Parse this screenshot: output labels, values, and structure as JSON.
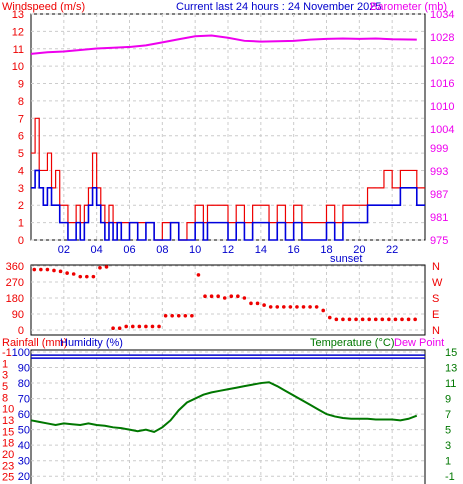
{
  "header": {
    "left_title": "Windspeed (m/s)",
    "center_title": "Current last 24 hours : 24 November 2025",
    "right_title": "Barometer (mb)",
    "sunset_label": "sunset"
  },
  "colors": {
    "wind_avg": "#0000dd",
    "wind_gust": "#ee0000",
    "barometer": "#ee00ee",
    "direction": "#ee0000",
    "temperature": "#007700",
    "humidity": "#0000cc",
    "rainfall": "#ee0000",
    "dewpoint": "#ee00ee",
    "grid": "#cccccc"
  },
  "chart_data": [
    {
      "type": "line",
      "title": "Current last 24 hours : 24 November 2025",
      "left_axis": {
        "label": "Windspeed (m/s)",
        "ticks": [
          0,
          1,
          2,
          3,
          4,
          5,
          6,
          7,
          8,
          9,
          10,
          11,
          12,
          13
        ],
        "ylim": [
          0,
          13
        ]
      },
      "right_axis": {
        "label": "Barometer (mb)",
        "ticks": [
          975,
          981,
          987,
          993,
          999,
          1004,
          1010,
          1016,
          1022,
          1028,
          1034
        ],
        "ylim": [
          975,
          1034
        ]
      },
      "x_ticks": [
        "02",
        "04",
        "06",
        "08",
        "10",
        "12",
        "14",
        "16",
        "18",
        "20",
        "22"
      ],
      "xlim": [
        0,
        24
      ],
      "series": [
        {
          "name": "Barometer",
          "axis": "right",
          "x": [
            0,
            1,
            2,
            3,
            4,
            5,
            6,
            7,
            8,
            9,
            10,
            11,
            12,
            13,
            14,
            15,
            16,
            17,
            18,
            19,
            20,
            21,
            22,
            23.5
          ],
          "values": [
            1023.6,
            1024.0,
            1024.2,
            1024.6,
            1025.0,
            1025.2,
            1025.4,
            1025.8,
            1026.6,
            1027.4,
            1028.2,
            1028.4,
            1027.8,
            1027.0,
            1026.8,
            1026.9,
            1027.0,
            1027.3,
            1027.5,
            1027.6,
            1027.5,
            1027.6,
            1027.4,
            1027.3
          ]
        },
        {
          "axis": "left",
          "x": [
            0,
            0.25,
            0.5,
            0.75,
            1,
            1.25,
            1.5,
            1.75,
            2,
            2.25,
            2.5,
            2.75,
            3,
            3.25,
            3.5,
            3.75,
            4,
            4.25,
            4.5,
            4.75,
            5,
            5.25,
            5.5,
            5.75,
            6,
            6.5,
            7,
            7.5,
            8,
            8.5,
            9,
            9.5,
            10,
            10.25,
            10.5,
            10.75,
            11,
            11.5,
            12,
            12.5,
            13,
            13.5,
            14,
            14.5,
            15,
            15.5,
            16,
            16.5,
            17,
            17.5,
            18,
            18.5,
            19,
            19.5,
            20,
            20.5,
            21,
            21.5,
            22,
            22.5,
            23,
            23.5
          ],
          "values": [
            5,
            7,
            4,
            4,
            5,
            3,
            4,
            2,
            2,
            1,
            1,
            2,
            1,
            2,
            3,
            5,
            3,
            2,
            1,
            2,
            1,
            1,
            1,
            1,
            1,
            1,
            1,
            0,
            1,
            1,
            0,
            1,
            2,
            2,
            1,
            2,
            2,
            2,
            1,
            2,
            1,
            2,
            2,
            1,
            2,
            1,
            2,
            1,
            1,
            1,
            2,
            1,
            2,
            2,
            2,
            3,
            3,
            4,
            3,
            4,
            4,
            3
          ]
        },
        {
          "axis": "left",
          "x": [
            0,
            0.25,
            0.5,
            0.75,
            1,
            1.25,
            1.5,
            1.75,
            2,
            2.25,
            2.5,
            2.75,
            3,
            3.25,
            3.5,
            3.75,
            4,
            4.25,
            4.5,
            4.75,
            5,
            5.25,
            5.5,
            5.75,
            6,
            6.5,
            7,
            7.5,
            8,
            8.5,
            9,
            9.5,
            10,
            10.25,
            10.5,
            10.75,
            11,
            11.5,
            12,
            12.5,
            13,
            13.5,
            14,
            14.5,
            15,
            15.5,
            16,
            16.5,
            17,
            17.5,
            18,
            18.5,
            19,
            19.5,
            20,
            20.5,
            21,
            21.5,
            22,
            22.5,
            23,
            23.5
          ],
          "values": [
            3,
            4,
            3,
            2,
            3,
            2,
            2,
            1,
            1,
            0,
            0,
            1,
            0,
            1,
            2,
            3,
            2,
            1,
            0,
            1,
            0,
            1,
            0,
            0,
            1,
            0,
            1,
            0,
            0,
            1,
            0,
            0,
            1,
            1,
            0,
            1,
            1,
            1,
            0,
            1,
            0,
            1,
            1,
            0,
            1,
            0,
            1,
            0,
            0,
            0,
            1,
            0,
            1,
            1,
            1,
            2,
            2,
            2,
            2,
            3,
            3,
            2
          ]
        }
      ]
    },
    {
      "type": "scatter",
      "title": "",
      "left_axis": {
        "ticks": [
          0,
          90,
          180,
          270,
          360
        ],
        "ylim": [
          0,
          360
        ]
      },
      "right_axis": {
        "ticks": [
          "N",
          "E",
          "S",
          "W",
          "N"
        ]
      },
      "xlim": [
        0,
        24
      ],
      "series": [
        {
          "x": [
            0.2,
            0.6,
            1.0,
            1.4,
            1.8,
            2.2,
            2.6,
            3.0,
            3.4,
            3.8,
            4.2,
            4.6,
            5.0,
            5.4,
            5.8,
            6.2,
            6.6,
            7.0,
            7.4,
            7.8,
            8.2,
            8.6,
            9.0,
            9.4,
            9.8,
            10.2,
            10.6,
            11.0,
            11.4,
            11.8,
            12.2,
            12.6,
            13.0,
            13.4,
            13.8,
            14.2,
            14.6,
            15.0,
            15.4,
            15.8,
            16.2,
            16.6,
            17.0,
            17.4,
            17.8,
            18.2,
            18.6,
            19.0,
            19.4,
            19.8,
            20.2,
            20.6,
            21.0,
            21.4,
            21.8,
            22.2,
            22.6,
            23.0,
            23.4
          ],
          "values": [
            340,
            340,
            340,
            335,
            330,
            320,
            315,
            300,
            300,
            300,
            350,
            355,
            10,
            10,
            20,
            20,
            20,
            20,
            20,
            20,
            80,
            80,
            80,
            80,
            80,
            310,
            190,
            190,
            190,
            180,
            190,
            190,
            180,
            150,
            150,
            140,
            130,
            130,
            130,
            130,
            130,
            130,
            130,
            130,
            110,
            70,
            60,
            60,
            60,
            60,
            60,
            60,
            60,
            60,
            60,
            60,
            60,
            60,
            60
          ]
        }
      ]
    },
    {
      "type": "line",
      "title": "",
      "labels": {
        "rainfall": "Rainfall (mm)",
        "humidity": "Humidity (%)",
        "temperature": "Temperature (°C)",
        "dewpoint": "Dew Point"
      },
      "left_axis_humidity_ticks": [
        20,
        30,
        40,
        50,
        60,
        70,
        80,
        90,
        100
      ],
      "left_axis_rain_ticks": [
        -1,
        1,
        3,
        5,
        8,
        10,
        13,
        15,
        18,
        20,
        23,
        25
      ],
      "right_axis_temp_ticks": [
        -1,
        1,
        3,
        5,
        7,
        9,
        11,
        13,
        15
      ],
      "xlim": [
        0,
        24
      ],
      "series": [
        {
          "name": "Humidity",
          "axis": "humidity",
          "x": [
            0,
            24
          ],
          "values": [
            98,
            98
          ]
        },
        {
          "name": "Temperature",
          "axis": "temperature",
          "x": [
            0,
            0.5,
            1,
            1.5,
            2,
            2.5,
            3,
            3.5,
            4,
            4.5,
            5,
            5.5,
            6,
            6.5,
            7,
            7.5,
            8,
            8.5,
            9,
            9.5,
            10,
            10.5,
            11,
            11.5,
            12,
            12.5,
            13,
            13.5,
            14,
            14.5,
            15,
            15.5,
            16,
            16.5,
            17,
            17.5,
            18,
            18.5,
            19,
            19.5,
            20,
            20.5,
            21,
            21.5,
            22,
            22.5,
            23,
            23.5
          ],
          "values": [
            6.2,
            6.0,
            5.8,
            5.6,
            5.8,
            5.7,
            5.6,
            5.8,
            5.6,
            5.5,
            5.3,
            5.2,
            5.0,
            4.8,
            5.0,
            4.7,
            5.3,
            6.2,
            7.5,
            8.5,
            9.0,
            9.5,
            9.8,
            10.0,
            10.2,
            10.4,
            10.6,
            10.8,
            11.0,
            11.1,
            10.6,
            10.0,
            9.4,
            8.8,
            8.2,
            7.6,
            7.0,
            6.7,
            6.5,
            6.4,
            6.4,
            6.4,
            6.3,
            6.3,
            6.3,
            6.2,
            6.4,
            6.8
          ]
        }
      ]
    }
  ]
}
